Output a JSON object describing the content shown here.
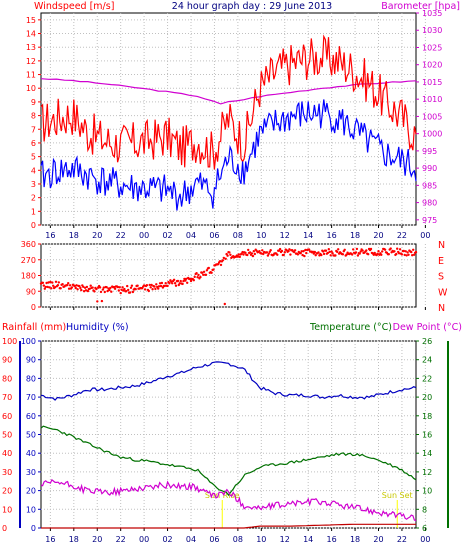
{
  "chart_data": [
    {
      "type": "line",
      "title": "24 hour graph day : 29 June 2013",
      "left_axis_label": "Windspeed [m/s]",
      "right_axis_label": "Barometer [hpa]",
      "x_ticks": [
        "16",
        "18",
        "20",
        "22",
        "00",
        "02",
        "04",
        "06",
        "08",
        "10",
        "12",
        "14",
        "16",
        "18",
        "20",
        "22",
        "00"
      ],
      "left_ticks": [
        "0",
        "1",
        "2",
        "3",
        "4",
        "5",
        "6",
        "7",
        "8",
        "9",
        "10",
        "11",
        "12",
        "13",
        "14",
        "15"
      ],
      "right_ticks": [
        "975",
        "980",
        "985",
        "990",
        "995",
        "1000",
        "1005",
        "1010",
        "1015",
        "1020",
        "1025",
        "1030",
        "1035"
      ],
      "left_ylim": [
        0,
        15.5
      ],
      "right_ylim": [
        973.5,
        1035
      ],
      "grid": true,
      "series": [
        {
          "axis": "right",
          "color": "#d000d0",
          "x": [
            0,
            2,
            4,
            6,
            8,
            10,
            11.5,
            12,
            13,
            14,
            16,
            18,
            20,
            22,
            24
          ],
          "values": [
            1016,
            1015.4,
            1014.5,
            1013.4,
            1012.2,
            1010.9,
            1008.6,
            1009.2,
            1009.9,
            1010.8,
            1012.0,
            1013.2,
            1014.1,
            1014.8,
            1015.3
          ]
        },
        {
          "axis": "left",
          "color": "#ff0000",
          "x": [
            0,
            1,
            2,
            3,
            4,
            5,
            6,
            7,
            8,
            9,
            10,
            11,
            12,
            13,
            14,
            15,
            16,
            17,
            18,
            19,
            20,
            21,
            22,
            23,
            24
          ],
          "values": [
            7.4,
            7.8,
            8.1,
            6.8,
            6.2,
            5.9,
            6.0,
            6.2,
            6.5,
            5.6,
            6.2,
            5.3,
            7.8,
            6.0,
            10.0,
            11.2,
            11.8,
            12.2,
            12.3,
            12.0,
            11.3,
            10.4,
            9.1,
            8.0,
            6.5
          ]
        },
        {
          "axis": "left",
          "color": "#0000ff",
          "x": [
            0,
            1,
            2,
            3,
            4,
            5,
            6,
            7,
            8,
            9,
            10,
            11,
            12,
            13,
            14,
            15,
            16,
            17,
            18,
            19,
            20,
            21,
            22,
            23,
            24
          ],
          "values": [
            3.5,
            3.9,
            4.1,
            3.6,
            3.2,
            2.9,
            2.7,
            2.6,
            2.5,
            2.1,
            3.0,
            2.4,
            4.9,
            4.0,
            6.6,
            7.4,
            7.9,
            8.1,
            8.2,
            7.8,
            6.9,
            6.0,
            5.2,
            4.7,
            4.1
          ]
        }
      ]
    },
    {
      "type": "scatter",
      "title": "",
      "left_ticks": [
        "0",
        "90",
        "180",
        "270",
        "360"
      ],
      "right_labels": [
        "N",
        "W",
        "S",
        "E",
        "N"
      ],
      "ylim": [
        0,
        360
      ],
      "grid": true,
      "series": [
        {
          "color": "#ff0000",
          "x": [
            0,
            1,
            2,
            3,
            4,
            5,
            6,
            7,
            8,
            9,
            10,
            11,
            12,
            13,
            14,
            15,
            16,
            17,
            18,
            19,
            20,
            21,
            22,
            23,
            24
          ],
          "values": [
            120,
            128,
            112,
            103,
            100,
            98,
            103,
            112,
            128,
            148,
            175,
            215,
            296,
            308,
            312,
            312,
            312,
            310,
            312,
            314,
            313,
            312,
            313,
            315,
            308
          ]
        }
      ]
    },
    {
      "type": "line",
      "title": "",
      "left_axis_label_1": "Rainfall (mm)",
      "left_axis_label_2": "Humidity (%)",
      "right_axis_label_1": "Temperature (°C)",
      "right_axis_label_2": "Dew Point (°C)",
      "left_ticks": [
        "0",
        "10",
        "20",
        "30",
        "40",
        "50",
        "60",
        "70",
        "80",
        "90",
        "100"
      ],
      "right_ticks": [
        "6",
        "8",
        "10",
        "12",
        "14",
        "16",
        "18",
        "20",
        "22",
        "24",
        "26"
      ],
      "left_ylim": [
        0,
        100
      ],
      "right_ylim": [
        6,
        26
      ],
      "annotations": [
        "Sun Rise",
        "Sun Set"
      ],
      "grid": true,
      "series": [
        {
          "axis": "left",
          "color": "#0000c0",
          "x": [
            0,
            1,
            2,
            3,
            4,
            5,
            6,
            7,
            8,
            9,
            10,
            11,
            12,
            13,
            14,
            15,
            16,
            17,
            18,
            19,
            20,
            21,
            22,
            23,
            24
          ],
          "values": [
            71,
            69,
            71,
            74,
            74,
            75,
            76,
            78,
            81,
            83,
            86,
            88,
            88,
            85,
            75,
            72,
            71,
            71,
            70,
            71,
            70,
            70,
            72,
            74,
            75
          ]
        },
        {
          "axis": "right",
          "color": "#007000",
          "x": [
            0,
            1,
            2,
            3,
            4,
            5,
            6,
            7,
            8,
            9,
            10,
            11,
            12,
            13,
            14,
            15,
            16,
            17,
            18,
            19,
            20,
            21,
            22,
            23,
            24
          ],
          "values": [
            16.8,
            16.5,
            15.8,
            15.0,
            14.3,
            13.6,
            13.3,
            13.1,
            12.8,
            12.5,
            12.2,
            10.6,
            9.6,
            11.6,
            12.5,
            12.8,
            13.0,
            13.3,
            13.6,
            13.9,
            13.9,
            13.6,
            13.0,
            12.3,
            11.2
          ]
        },
        {
          "axis": "right",
          "color": "#d000d0",
          "x": [
            0,
            1,
            2,
            3,
            4,
            5,
            6,
            7,
            8,
            9,
            10,
            11,
            12,
            13,
            14,
            15,
            16,
            17,
            18,
            19,
            20,
            21,
            22,
            23,
            24
          ],
          "values": [
            10.6,
            10.9,
            10.5,
            10.0,
            9.8,
            9.9,
            10.2,
            10.4,
            10.6,
            10.5,
            10.3,
            9.4,
            9.9,
            8.4,
            8.1,
            8.4,
            8.6,
            8.8,
            8.8,
            8.5,
            8.2,
            7.9,
            7.6,
            7.3,
            7.0
          ]
        },
        {
          "axis": "left",
          "color": "#c00000",
          "x": [
            0,
            8,
            10,
            11,
            12,
            13,
            14,
            16,
            18,
            20,
            22,
            24
          ],
          "values": [
            0,
            0,
            0,
            0,
            0,
            0,
            1,
            1,
            1.5,
            2,
            2,
            2
          ]
        }
      ]
    }
  ],
  "colors": {
    "wind_label": "#ff0000",
    "baro_label": "#d000d0",
    "title": "#000080",
    "humidity_axis": "#0000c0",
    "temperature_axis": "#007000",
    "sun_marker": "#ffff00",
    "grid": "#c0c0c0"
  }
}
